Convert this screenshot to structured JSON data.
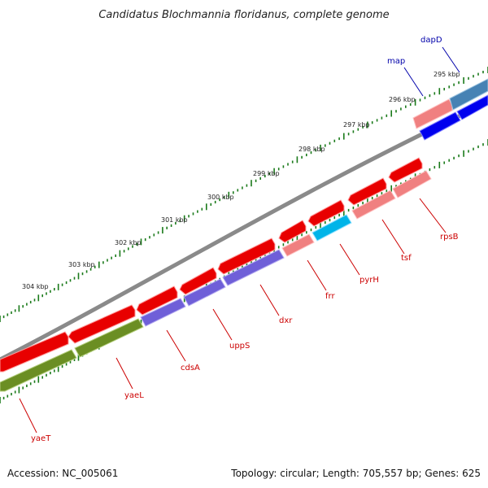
{
  "title": "Candidatus Blochmannia floridanus, complete genome",
  "footer": {
    "accession": "Accession: NC_005061",
    "summary": "Topology: circular; Length: 705,557 bp; Genes: 625"
  },
  "scale_labels": [
    "295 kbp",
    "296 kbp",
    "297 kbp",
    "298 kbp",
    "299 kbp",
    "300 kbp",
    "301 kbp",
    "302 kbp",
    "303 kbp",
    "304 kbp"
  ],
  "gene_labels": [
    {
      "name": "dapD",
      "color": "#0000aa"
    },
    {
      "name": "map",
      "color": "#0000aa"
    },
    {
      "name": "rpsB",
      "color": "#cc0000"
    },
    {
      "name": "tsf",
      "color": "#cc0000"
    },
    {
      "name": "pyrH",
      "color": "#cc0000"
    },
    {
      "name": "frr",
      "color": "#cc0000"
    },
    {
      "name": "dxr",
      "color": "#cc0000"
    },
    {
      "name": "uppS",
      "color": "#cc0000"
    },
    {
      "name": "cdsA",
      "color": "#cc0000"
    },
    {
      "name": "yaeL",
      "color": "#cc0000"
    },
    {
      "name": "yaeT",
      "color": "#cc0000"
    }
  ],
  "colors": {
    "backbone": "#808080",
    "scale_ticks": "#1a7a1a",
    "gene_red": "#ee0000",
    "gene_pink": "#f08080",
    "gene_purple": "#6f5fd8",
    "gene_olive": "#6b8e23",
    "gene_cyan": "#00b4e8",
    "gene_blue": "#0000ee",
    "gene_steel": "#4682b4"
  }
}
